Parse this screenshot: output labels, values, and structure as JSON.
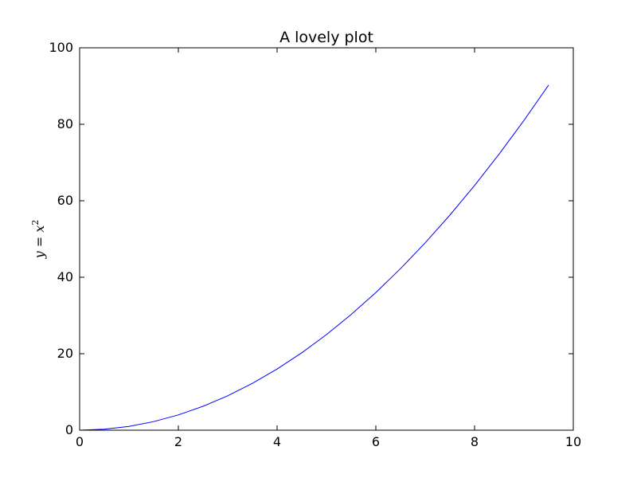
{
  "chart_data": {
    "type": "line",
    "title": "A lovely plot",
    "xlabel": "",
    "ylabel": "y = x²",
    "ylabel_parts": {
      "base": "y = x",
      "exponent": "2"
    },
    "xlim": [
      0,
      10
    ],
    "ylim": [
      0,
      100
    ],
    "xticks": [
      0,
      2,
      4,
      6,
      8,
      10
    ],
    "yticks": [
      0,
      20,
      40,
      60,
      80,
      100
    ],
    "grid": false,
    "legend": "none",
    "series": [
      {
        "color": "#0000ff",
        "x": [
          0,
          0.5,
          1,
          1.5,
          2,
          2.5,
          3,
          3.5,
          4,
          4.5,
          5,
          5.5,
          6,
          6.5,
          7,
          7.5,
          8,
          8.5,
          9,
          9.5
        ],
        "y": [
          0,
          0.25,
          1,
          2.25,
          4,
          6.25,
          9,
          12.25,
          16,
          20.25,
          25,
          30.25,
          36,
          42.25,
          49,
          56.25,
          64,
          72.25,
          81,
          90.25
        ]
      }
    ]
  }
}
